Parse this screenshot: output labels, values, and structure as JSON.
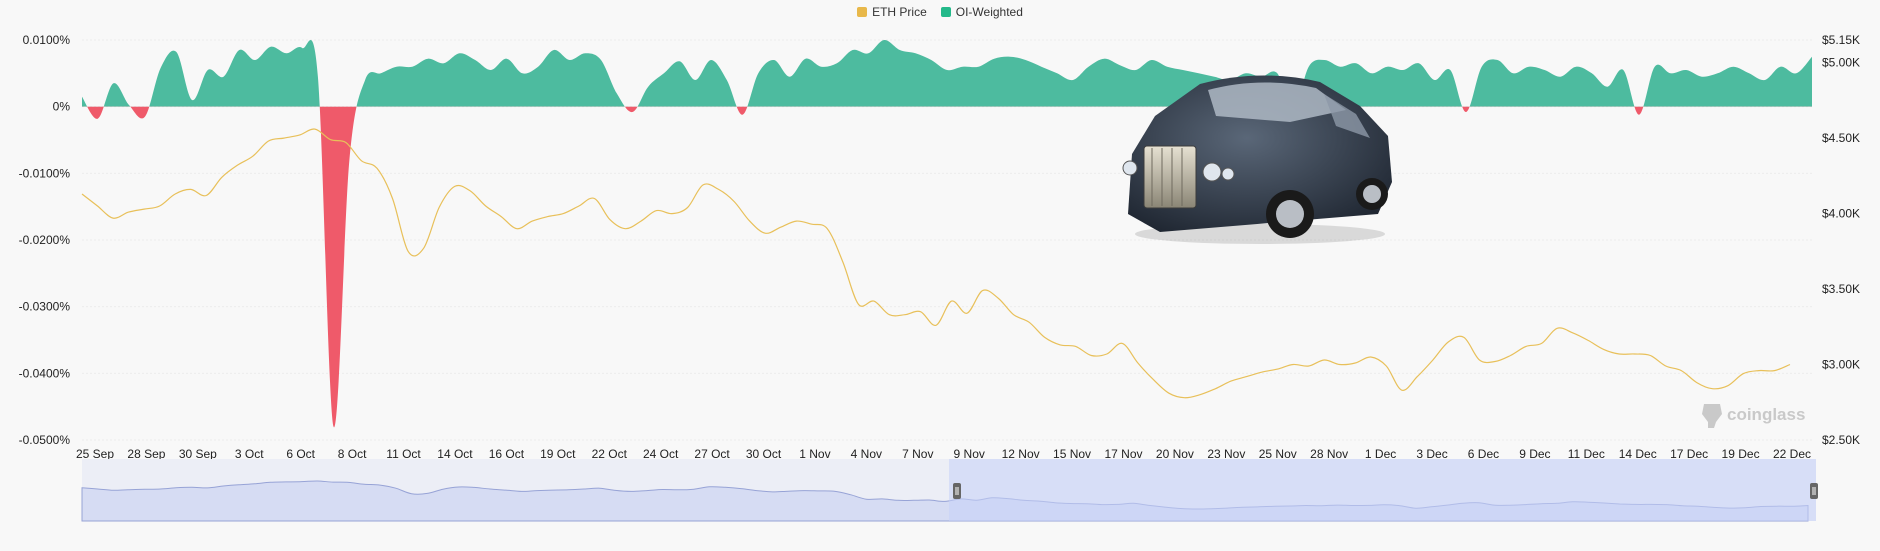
{
  "legend": {
    "eth_label": "ETH Price",
    "oi_label": "OI-Weighted"
  },
  "colors": {
    "eth": "#e8c05a",
    "oi_pos": "#4dbb9f",
    "oi_neg": "#ef5a6a",
    "navigator_fill": "#d6dcf3",
    "navigator_line": "#97a3d6"
  },
  "watermark": {
    "text": "coinglass",
    "icon": "coinglass-logo-icon"
  },
  "overlay_image": {
    "icon": "car-image"
  },
  "chart_data": {
    "type": "line",
    "left_axis": {
      "ticks": [
        "0.0100%",
        "0%",
        "-0.0100%",
        "-0.0200%",
        "-0.0300%",
        "-0.0400%",
        "-0.0500%"
      ],
      "range": [
        -0.05,
        0.01
      ]
    },
    "right_axis": {
      "ticks": [
        "$5.15K",
        "$5.00K",
        "$4.50K",
        "$4.00K",
        "$3.50K",
        "$3.00K",
        "$2.50K"
      ],
      "range": [
        2500,
        5150
      ]
    },
    "x_ticks": [
      "25 Sep",
      "28 Sep",
      "30 Sep",
      "3 Oct",
      "6 Oct",
      "8 Oct",
      "11 Oct",
      "14 Oct",
      "16 Oct",
      "19 Oct",
      "22 Oct",
      "24 Oct",
      "27 Oct",
      "30 Oct",
      "1 Nov",
      "4 Nov",
      "7 Nov",
      "9 Nov",
      "12 Nov",
      "15 Nov",
      "17 Nov",
      "20 Nov",
      "23 Nov",
      "25 Nov",
      "28 Nov",
      "1 Dec",
      "3 Dec",
      "6 Dec",
      "9 Dec",
      "11 Dec",
      "14 Dec",
      "17 Dec",
      "19 Dec",
      "22 Dec"
    ],
    "series": [
      {
        "name": "ETH Price",
        "axis": "right",
        "values": [
          4130,
          4050,
          3970,
          4010,
          4030,
          4050,
          4130,
          4160,
          4120,
          4240,
          4320,
          4380,
          4480,
          4500,
          4520,
          4560,
          4490,
          4470,
          4350,
          4300,
          4100,
          3750,
          3770,
          4040,
          4180,
          4150,
          4050,
          3980,
          3900,
          3950,
          3980,
          4000,
          4050,
          4100,
          3960,
          3900,
          3950,
          4020,
          4000,
          4040,
          4190,
          4160,
          4080,
          3950,
          3870,
          3910,
          3950,
          3930,
          3900,
          3680,
          3400,
          3420,
          3330,
          3330,
          3350,
          3260,
          3420,
          3340,
          3490,
          3440,
          3330,
          3280,
          3180,
          3130,
          3120,
          3060,
          3070,
          3140,
          3010,
          2900,
          2810,
          2780,
          2800,
          2840,
          2890,
          2920,
          2950,
          2970,
          3000,
          2990,
          3030,
          3000,
          3010,
          3050,
          2990,
          2830,
          2920,
          3030,
          3150,
          3180,
          3030,
          3020,
          3060,
          3120,
          3140,
          3240,
          3210,
          3160,
          3100,
          3070,
          3070,
          3060,
          2990,
          2960,
          2880,
          2840,
          2860,
          2940,
          2960,
          2960,
          3000
        ],
        "color": "#e8c05a"
      },
      {
        "name": "OI-Weighted",
        "axis": "left",
        "values": [
          0.0015,
          -0.0018,
          0.0035,
          0.0002,
          -0.0015,
          0.0058,
          0.0082,
          0.001,
          0.0055,
          0.0045,
          0.0085,
          0.007,
          0.009,
          0.008,
          0.0088,
          0.0045,
          -0.048,
          -0.008,
          0.004,
          0.005,
          0.006,
          0.006,
          0.0072,
          0.0065,
          0.008,
          0.007,
          0.0055,
          0.0072,
          0.005,
          0.006,
          0.0085,
          0.007,
          0.008,
          0.007,
          0.002,
          -0.0008,
          0.003,
          0.005,
          0.0068,
          0.004,
          0.007,
          0.004,
          -0.0012,
          0.005,
          0.007,
          0.0045,
          0.0072,
          0.006,
          0.0065,
          0.0085,
          0.008,
          0.01,
          0.0085,
          0.008,
          0.007,
          0.0055,
          0.006,
          0.006,
          0.0072,
          0.0075,
          0.007,
          0.006,
          0.005,
          0.004,
          0.006,
          0.0072,
          0.0062,
          0.0055,
          0.007,
          0.006,
          0.0055,
          0.005,
          0.0045,
          0.004,
          0.005,
          0.0045,
          0.005,
          -0.0008,
          0.006,
          0.007,
          0.006,
          0.0065,
          0.005,
          0.006,
          0.0055,
          0.0065,
          0.004,
          0.0055,
          -0.0008,
          0.006,
          0.007,
          0.005,
          0.006,
          0.0055,
          0.0045,
          0.006,
          0.005,
          0.003,
          0.0055,
          -0.0012,
          0.006,
          0.005,
          0.0055,
          0.0045,
          0.005,
          0.006,
          0.005,
          0.004,
          0.006,
          0.005,
          0.0075
        ],
        "color": "#4dbb9f"
      }
    ],
    "navigator": {
      "selection": [
        0.5,
        1.0
      ]
    },
    "grid": true
  }
}
